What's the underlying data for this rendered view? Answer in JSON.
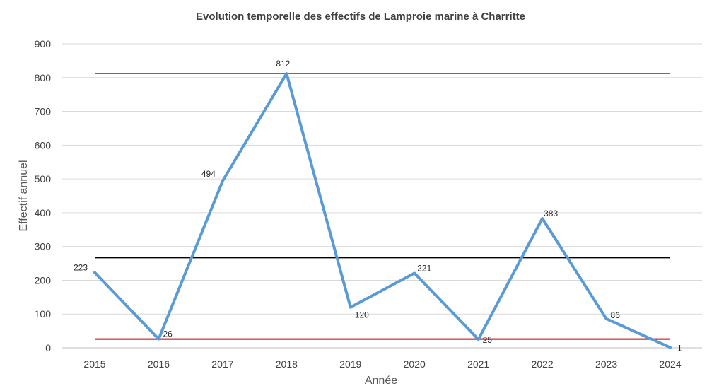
{
  "chart_data": {
    "type": "line",
    "title": "Evolution temporelle des effectifs de Lamproie marine à Charritte",
    "xlabel": "Année",
    "ylabel": "Effectif annuel",
    "categories": [
      "2015",
      "2016",
      "2017",
      "2018",
      "2019",
      "2020",
      "2021",
      "2022",
      "2023",
      "2024"
    ],
    "series": [
      {
        "values": [
          223,
          26,
          494,
          812,
          120,
          221,
          25,
          383,
          86,
          1
        ],
        "color": "#5b9bd5"
      }
    ],
    "reference_lines": [
      {
        "value": 812,
        "color": "#1e9e5a"
      },
      {
        "value": 267,
        "color": "#000000"
      },
      {
        "value": 26,
        "color": "#c00000"
      }
    ],
    "ylim": [
      0,
      900
    ],
    "yticks": [
      0,
      100,
      200,
      300,
      400,
      500,
      600,
      700,
      800,
      900
    ],
    "grid": true,
    "legend": "none"
  }
}
